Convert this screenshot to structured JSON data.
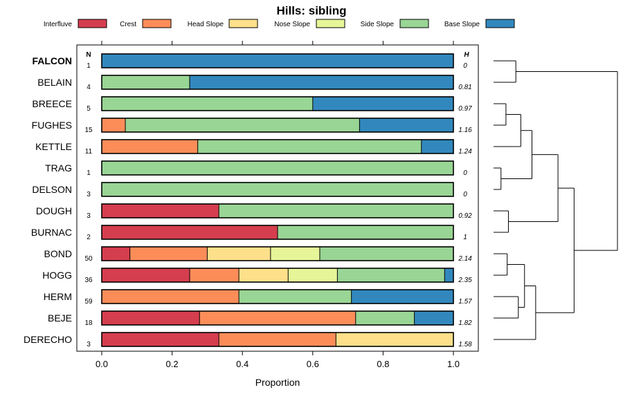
{
  "chart_data": {
    "type": "bar",
    "stacked": true,
    "orientation": "horizontal",
    "title": "Hills: sibling",
    "xlabel": "Proportion",
    "ylabel": "",
    "xlim": [
      0,
      1
    ],
    "xticks": [
      "0.0",
      "0.2",
      "0.4",
      "0.6",
      "0.8",
      "1.0"
    ],
    "n_header": "N",
    "h_header": "H",
    "highlight": "FALCON",
    "legend": [
      {
        "name": "Interfluve",
        "color": "#d53e4f"
      },
      {
        "name": "Crest",
        "color": "#fc8d59"
      },
      {
        "name": "Head Slope",
        "color": "#fee08b"
      },
      {
        "name": "Nose Slope",
        "color": "#e6f598"
      },
      {
        "name": "Side Slope",
        "color": "#99d594"
      },
      {
        "name": "Base Slope",
        "color": "#3288bd"
      }
    ],
    "rows": [
      {
        "site": "FALCON",
        "n": "1",
        "h": "0",
        "values": [
          0,
          0,
          0,
          0,
          0,
          1
        ]
      },
      {
        "site": "BELAIN",
        "n": "4",
        "h": "0.81",
        "values": [
          0,
          0,
          0,
          0,
          0.25,
          0.75
        ]
      },
      {
        "site": "BREECE",
        "n": "5",
        "h": "0.97",
        "values": [
          0,
          0,
          0,
          0,
          0.6,
          0.4
        ]
      },
      {
        "site": "FUGHES",
        "n": "15",
        "h": "1.16",
        "values": [
          0,
          0.067,
          0,
          0,
          0.666,
          0.267
        ]
      },
      {
        "site": "KETTLE",
        "n": "11",
        "h": "1.24",
        "values": [
          0,
          0.273,
          0,
          0,
          0.636,
          0.091
        ]
      },
      {
        "site": "TRAG",
        "n": "1",
        "h": "0",
        "values": [
          0,
          0,
          0,
          0,
          1,
          0
        ]
      },
      {
        "site": "DELSON",
        "n": "3",
        "h": "0",
        "values": [
          0,
          0,
          0,
          0,
          1,
          0
        ]
      },
      {
        "site": "DOUGH",
        "n": "3",
        "h": "0.92",
        "values": [
          0.333,
          0,
          0,
          0,
          0.667,
          0
        ]
      },
      {
        "site": "BURNAC",
        "n": "2",
        "h": "1",
        "values": [
          0.5,
          0,
          0,
          0,
          0.5,
          0
        ]
      },
      {
        "site": "BOND",
        "n": "50",
        "h": "2.14",
        "values": [
          0.08,
          0.22,
          0.18,
          0.14,
          0.38,
          0
        ]
      },
      {
        "site": "HOGG",
        "n": "36",
        "h": "2.35",
        "values": [
          0.25,
          0.14,
          0.14,
          0.14,
          0.305,
          0.025
        ]
      },
      {
        "site": "HERM",
        "n": "59",
        "h": "1.57",
        "values": [
          0,
          0.39,
          0,
          0,
          0.32,
          0.29
        ]
      },
      {
        "site": "BEJE",
        "n": "18",
        "h": "1.82",
        "values": [
          0.278,
          0.444,
          0,
          0,
          0.167,
          0.111
        ]
      },
      {
        "site": "DERECHO",
        "n": "3",
        "h": "1.58",
        "values": [
          0.333,
          0.333,
          0.334,
          0,
          0,
          0
        ]
      }
    ],
    "dendrogram": {
      "leaf_order": [
        "FALCON",
        "BELAIN",
        "BREECE",
        "FUGHES",
        "KETTLE",
        "TRAG",
        "DELSON",
        "DOUGH",
        "BURNAC",
        "BOND",
        "HOGG",
        "HERM",
        "BEJE",
        "DERECHO"
      ],
      "merges": [
        {
          "a": "FALCON",
          "b": "BELAIN",
          "height": 0.18
        },
        {
          "a": "BREECE",
          "b": "FUGHES",
          "height": 0.1
        },
        {
          "a": "m2",
          "b": "KETTLE",
          "height": 0.22
        },
        {
          "a": "TRAG",
          "b": "DELSON",
          "height": 0.06
        },
        {
          "a": "m3",
          "b": "m4",
          "height": 0.31
        },
        {
          "a": "DOUGH",
          "b": "BURNAC",
          "height": 0.12
        },
        {
          "a": "m5",
          "b": "m6",
          "height": 0.52
        },
        {
          "a": "BOND",
          "b": "HOGG",
          "height": 0.11
        },
        {
          "a": "HERM",
          "b": "BEJE",
          "height": 0.2
        },
        {
          "a": "m8",
          "b": "m9",
          "height": 0.25
        },
        {
          "a": "m10",
          "b": "DERECHO",
          "height": 0.34
        },
        {
          "a": "m7",
          "b": "m11",
          "height": 0.65
        },
        {
          "a": "m1",
          "b": "m12",
          "height": 1.0
        }
      ]
    }
  }
}
